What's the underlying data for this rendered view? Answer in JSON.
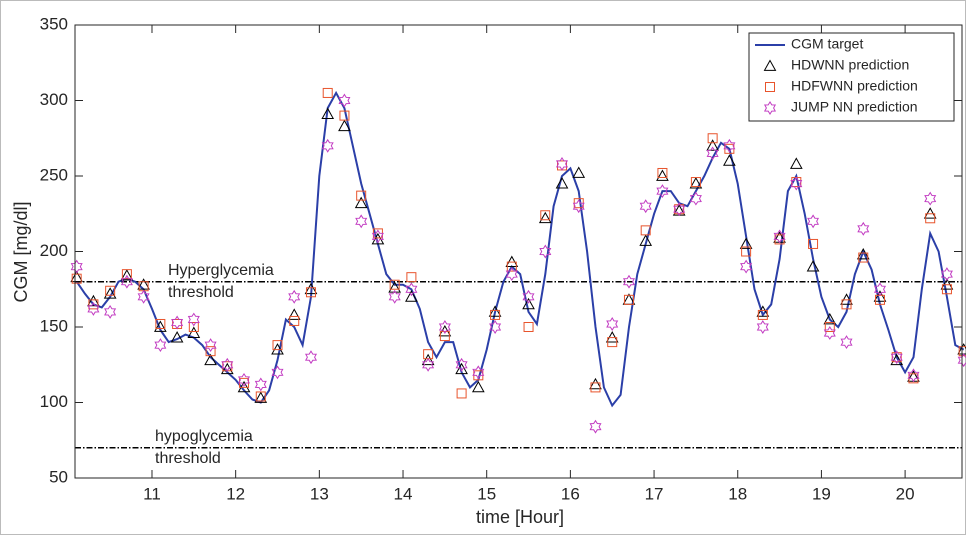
{
  "chart_data": {
    "type": "line",
    "xlabel": "time [Hour]",
    "ylabel": "CGM [mg/dl]",
    "xlim": [
      10.08,
      20.68
    ],
    "ylim": [
      50,
      350
    ],
    "xticks": [
      11,
      12,
      13,
      14,
      15,
      16,
      17,
      18,
      19,
      20
    ],
    "yticks": [
      50,
      100,
      150,
      200,
      250,
      300,
      350
    ],
    "legend": "upper right",
    "thresholds": [
      {
        "value": 180,
        "label": [
          "Hyperglycemia",
          "threshold"
        ]
      },
      {
        "value": 70,
        "label": [
          "hypoglycemia",
          "threshold"
        ]
      }
    ],
    "series": [
      {
        "name": "CGM target",
        "style": "line",
        "color": "#2b3fa8",
        "x": [
          10.1,
          10.2,
          10.3,
          10.4,
          10.5,
          10.6,
          10.7,
          10.8,
          10.9,
          11.0,
          11.1,
          11.2,
          11.3,
          11.4,
          11.5,
          11.6,
          11.7,
          11.8,
          11.9,
          12.0,
          12.1,
          12.2,
          12.3,
          12.4,
          12.5,
          12.6,
          12.7,
          12.8,
          12.9,
          13.0,
          13.1,
          13.2,
          13.3,
          13.4,
          13.5,
          13.6,
          13.7,
          13.8,
          13.9,
          14.0,
          14.1,
          14.2,
          14.3,
          14.4,
          14.5,
          14.6,
          14.7,
          14.8,
          14.9,
          15.0,
          15.1,
          15.2,
          15.3,
          15.4,
          15.5,
          15.6,
          15.7,
          15.8,
          15.9,
          16.0,
          16.1,
          16.2,
          16.3,
          16.4,
          16.5,
          16.6,
          16.7,
          16.8,
          16.9,
          17.0,
          17.1,
          17.2,
          17.3,
          17.4,
          17.5,
          17.6,
          17.7,
          17.8,
          17.9,
          18.0,
          18.1,
          18.2,
          18.3,
          18.4,
          18.5,
          18.6,
          18.7,
          18.8,
          18.9,
          19.0,
          19.1,
          19.2,
          19.3,
          19.4,
          19.5,
          19.6,
          19.7,
          19.8,
          19.9,
          20.0,
          20.1,
          20.2,
          20.3,
          20.4,
          20.5,
          20.6,
          20.7
        ],
        "values": [
          180,
          172,
          165,
          163,
          170,
          180,
          182,
          180,
          175,
          162,
          148,
          140,
          142,
          145,
          143,
          138,
          130,
          125,
          120,
          115,
          108,
          102,
          100,
          108,
          128,
          155,
          150,
          138,
          170,
          250,
          295,
          305,
          295,
          270,
          245,
          225,
          205,
          185,
          178,
          178,
          175,
          162,
          140,
          130,
          140,
          140,
          120,
          110,
          115,
          135,
          160,
          180,
          190,
          185,
          160,
          152,
          185,
          230,
          250,
          255,
          240,
          200,
          150,
          110,
          98,
          105,
          150,
          185,
          205,
          225,
          240,
          240,
          232,
          230,
          240,
          250,
          262,
          272,
          268,
          245,
          210,
          175,
          158,
          165,
          195,
          240,
          250,
          225,
          195,
          170,
          155,
          150,
          160,
          185,
          200,
          188,
          165,
          148,
          130,
          120,
          130,
          175,
          212,
          200,
          170,
          138,
          135
        ]
      },
      {
        "name": "HDWNN prediction",
        "style": "triangle",
        "color": "#000000",
        "x": [
          10.1,
          10.3,
          10.5,
          10.7,
          10.9,
          11.1,
          11.3,
          11.5,
          11.7,
          11.9,
          12.1,
          12.3,
          12.5,
          12.7,
          12.9,
          13.1,
          13.3,
          13.5,
          13.7,
          13.9,
          14.1,
          14.3,
          14.5,
          14.7,
          14.9,
          15.1,
          15.3,
          15.5,
          15.7,
          15.9,
          16.1,
          16.3,
          16.5,
          16.7,
          16.9,
          17.1,
          17.3,
          17.5,
          17.7,
          17.9,
          18.1,
          18.3,
          18.5,
          18.7,
          18.9,
          19.1,
          19.3,
          19.5,
          19.7,
          19.9,
          20.1,
          20.3,
          20.5,
          20.7
        ],
        "values": [
          183,
          167,
          172,
          184,
          178,
          150,
          143,
          146,
          128,
          122,
          110,
          103,
          135,
          158,
          175,
          291,
          283,
          232,
          208,
          176,
          170,
          128,
          147,
          122,
          110,
          160,
          193,
          165,
          222,
          245,
          252,
          112,
          143,
          168,
          207,
          250,
          227,
          245,
          270,
          260,
          205,
          160,
          209,
          258,
          190,
          155,
          168,
          198,
          170,
          128,
          117,
          225,
          178,
          135
        ]
      },
      {
        "name": "HDFWNN prediction",
        "style": "square",
        "color": "#e8542c",
        "x": [
          10.1,
          10.3,
          10.5,
          10.7,
          10.9,
          11.1,
          11.3,
          11.5,
          11.7,
          11.9,
          12.1,
          12.3,
          12.5,
          12.7,
          12.9,
          13.1,
          13.3,
          13.5,
          13.7,
          13.9,
          14.1,
          14.3,
          14.5,
          14.7,
          14.9,
          15.1,
          15.3,
          15.5,
          15.7,
          15.9,
          16.1,
          16.3,
          16.5,
          16.7,
          16.9,
          17.1,
          17.3,
          17.5,
          17.7,
          17.9,
          18.1,
          18.3,
          18.5,
          18.7,
          18.9,
          19.1,
          19.3,
          19.5,
          19.7,
          19.9,
          20.1,
          20.3,
          20.5,
          20.7
        ],
        "values": [
          182,
          165,
          174,
          185,
          177,
          152,
          152,
          150,
          134,
          124,
          113,
          104,
          138,
          154,
          173,
          305,
          290,
          237,
          212,
          178,
          183,
          132,
          144,
          106,
          118,
          158,
          190,
          150,
          224,
          257,
          232,
          110,
          140,
          168,
          214,
          252,
          228,
          246,
          275,
          268,
          200,
          158,
          208,
          246,
          205,
          150,
          165,
          196,
          168,
          130,
          116,
          222,
          175,
          134
        ]
      },
      {
        "name": "JUMP NN prediction",
        "style": "hexagram",
        "color": "#c23cc2",
        "x": [
          10.1,
          10.3,
          10.5,
          10.7,
          10.9,
          11.1,
          11.3,
          11.5,
          11.7,
          11.9,
          12.1,
          12.3,
          12.5,
          12.7,
          12.9,
          13.1,
          13.3,
          13.5,
          13.7,
          13.9,
          14.1,
          14.3,
          14.5,
          14.7,
          14.9,
          15.1,
          15.3,
          15.5,
          15.7,
          15.9,
          16.1,
          16.3,
          16.5,
          16.7,
          16.9,
          17.1,
          17.3,
          17.5,
          17.7,
          17.9,
          18.1,
          18.3,
          18.5,
          18.7,
          18.9,
          19.1,
          19.3,
          19.5,
          19.7,
          19.9,
          20.1,
          20.3,
          20.5,
          20.7
        ],
        "values": [
          190,
          162,
          160,
          180,
          170,
          138,
          153,
          155,
          138,
          125,
          115,
          112,
          120,
          170,
          130,
          270,
          300,
          220,
          210,
          170,
          175,
          125,
          150,
          125,
          120,
          150,
          185,
          170,
          200,
          258,
          230,
          84,
          152,
          180,
          230,
          240,
          228,
          235,
          265,
          270,
          190,
          150,
          210,
          245,
          220,
          146,
          140,
          215,
          175,
          130,
          118,
          235,
          185,
          128
        ]
      }
    ]
  }
}
